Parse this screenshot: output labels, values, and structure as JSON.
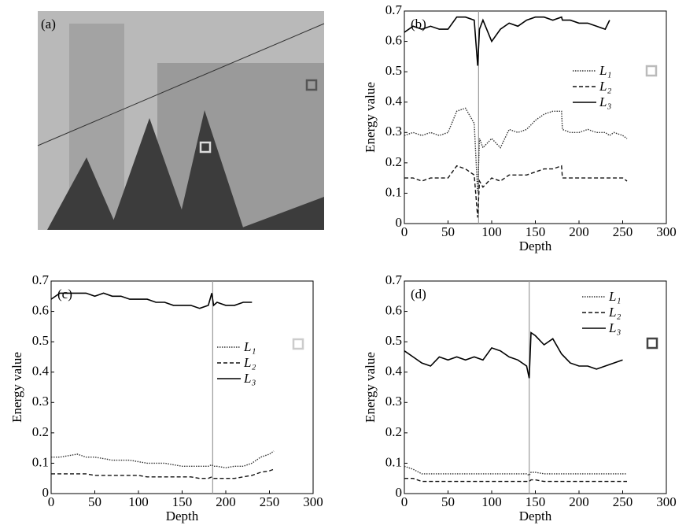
{
  "photo": {
    "label": "(a)"
  },
  "chart_data": [
    {
      "type": "line",
      "panel_label": "(b)",
      "xlabel": "Depth",
      "ylabel": "Energy value",
      "xlim": [
        0,
        300
      ],
      "ylim": [
        0,
        0.7
      ],
      "xticks": [
        0,
        50,
        100,
        150,
        200,
        250,
        300
      ],
      "yticks": [
        0,
        0.1,
        0.2,
        0.3,
        0.4,
        0.5,
        0.6,
        0.7
      ],
      "marker_x": 85,
      "x": [
        0,
        10,
        20,
        30,
        40,
        50,
        60,
        70,
        80,
        84,
        86,
        90,
        100,
        110,
        120,
        130,
        140,
        150,
        160,
        170,
        180,
        181,
        190,
        200,
        210,
        220,
        230,
        235,
        240,
        250,
        255
      ],
      "series": [
        {
          "name": "L₁",
          "style": "dotted",
          "color": "#333333",
          "values": [
            0.29,
            0.3,
            0.29,
            0.3,
            0.29,
            0.3,
            0.37,
            0.38,
            0.33,
            0.1,
            0.28,
            0.25,
            0.28,
            0.25,
            0.31,
            0.3,
            0.31,
            0.34,
            0.36,
            0.37,
            0.37,
            0.31,
            0.3,
            0.3,
            0.31,
            0.3,
            0.3,
            0.29,
            0.3,
            0.29,
            0.28
          ]
        },
        {
          "name": "L₂",
          "style": "dashed",
          "color": "#111111",
          "values": [
            0.15,
            0.15,
            0.14,
            0.15,
            0.15,
            0.15,
            0.19,
            0.18,
            0.16,
            0.02,
            0.14,
            0.12,
            0.15,
            0.14,
            0.16,
            0.16,
            0.16,
            0.17,
            0.18,
            0.18,
            0.19,
            0.15,
            0.15,
            0.15,
            0.15,
            0.15,
            0.15,
            0.15,
            0.15,
            0.15,
            0.14
          ]
        },
        {
          "name": "L₃",
          "style": "solid",
          "color": "#000000",
          "values": [
            0.63,
            0.65,
            0.64,
            0.65,
            0.64,
            0.64,
            0.68,
            0.68,
            0.67,
            0.52,
            0.64,
            0.67,
            0.6,
            0.64,
            0.66,
            0.65,
            0.67,
            0.68,
            0.68,
            0.67,
            0.68,
            0.67,
            0.67,
            0.66,
            0.66,
            0.65,
            0.64,
            0.67,
            null,
            null,
            null
          ]
        }
      ]
    },
    {
      "type": "line",
      "panel_label": "(c)",
      "xlabel": "Depth",
      "ylabel": "Energy value",
      "xlim": [
        0,
        300
      ],
      "ylim": [
        0,
        0.7
      ],
      "xticks": [
        0,
        50,
        100,
        150,
        200,
        250,
        300
      ],
      "yticks": [
        0,
        0.1,
        0.2,
        0.3,
        0.4,
        0.5,
        0.6,
        0.7
      ],
      "marker_x": 185,
      "x": [
        0,
        10,
        20,
        30,
        40,
        50,
        60,
        70,
        80,
        90,
        100,
        110,
        120,
        130,
        140,
        150,
        160,
        170,
        180,
        184,
        186,
        190,
        200,
        210,
        220,
        230,
        240,
        250,
        255
      ],
      "series": [
        {
          "name": "L₁",
          "style": "dotted",
          "color": "#333333",
          "values": [
            0.12,
            0.12,
            0.125,
            0.13,
            0.12,
            0.12,
            0.115,
            0.11,
            0.11,
            0.11,
            0.105,
            0.1,
            0.1,
            0.1,
            0.095,
            0.09,
            0.09,
            0.09,
            0.09,
            0.095,
            0.09,
            0.09,
            0.085,
            0.09,
            0.09,
            0.1,
            0.12,
            0.13,
            0.14
          ]
        },
        {
          "name": "L₂",
          "style": "dashed",
          "color": "#111111",
          "values": [
            0.065,
            0.065,
            0.065,
            0.065,
            0.065,
            0.06,
            0.06,
            0.06,
            0.06,
            0.06,
            0.06,
            0.055,
            0.055,
            0.055,
            0.055,
            0.055,
            0.055,
            0.05,
            0.05,
            0.055,
            0.05,
            0.05,
            0.05,
            0.05,
            0.055,
            0.06,
            0.07,
            0.075,
            0.08
          ]
        },
        {
          "name": "L₃",
          "style": "solid",
          "color": "#000000",
          "values": [
            0.64,
            0.66,
            0.66,
            0.66,
            0.66,
            0.65,
            0.66,
            0.65,
            0.65,
            0.64,
            0.64,
            0.64,
            0.63,
            0.63,
            0.62,
            0.62,
            0.62,
            0.61,
            0.62,
            0.66,
            0.62,
            0.63,
            0.62,
            0.62,
            0.63,
            0.63,
            null,
            null,
            null
          ]
        }
      ]
    },
    {
      "type": "line",
      "panel_label": "(d)",
      "xlabel": "Depth",
      "ylabel": "Energy value",
      "xlim": [
        0,
        300
      ],
      "ylim": [
        0,
        0.7
      ],
      "xticks": [
        0,
        50,
        100,
        150,
        200,
        250,
        300
      ],
      "yticks": [
        0,
        0.1,
        0.2,
        0.3,
        0.4,
        0.5,
        0.6,
        0.7
      ],
      "marker_x": 143,
      "x": [
        0,
        10,
        20,
        30,
        40,
        50,
        60,
        70,
        80,
        90,
        100,
        110,
        120,
        130,
        140,
        143,
        145,
        150,
        160,
        170,
        180,
        190,
        200,
        210,
        220,
        230,
        240,
        250,
        255
      ],
      "series": [
        {
          "name": "L₁",
          "style": "dotted",
          "color": "#333333",
          "values": [
            0.09,
            0.08,
            0.065,
            0.065,
            0.065,
            0.065,
            0.065,
            0.065,
            0.065,
            0.065,
            0.065,
            0.065,
            0.065,
            0.065,
            0.065,
            0.06,
            0.07,
            0.07,
            0.065,
            0.065,
            0.065,
            0.065,
            0.065,
            0.065,
            0.065,
            0.065,
            0.065,
            0.065,
            0.065
          ]
        },
        {
          "name": "L₂",
          "style": "dashed",
          "color": "#111111",
          "values": [
            0.05,
            0.05,
            0.04,
            0.04,
            0.04,
            0.04,
            0.04,
            0.04,
            0.04,
            0.04,
            0.04,
            0.04,
            0.04,
            0.04,
            0.04,
            0.04,
            0.045,
            0.045,
            0.04,
            0.04,
            0.04,
            0.04,
            0.04,
            0.04,
            0.04,
            0.04,
            0.04,
            0.04,
            0.04
          ]
        },
        {
          "name": "L₃",
          "style": "solid",
          "color": "#000000",
          "values": [
            0.47,
            0.45,
            0.43,
            0.42,
            0.45,
            0.44,
            0.45,
            0.44,
            0.45,
            0.44,
            0.48,
            0.47,
            0.45,
            0.44,
            0.42,
            0.38,
            0.53,
            0.52,
            0.49,
            0.51,
            0.46,
            0.43,
            0.42,
            0.42,
            0.41,
            0.42,
            0.43,
            0.44,
            null
          ]
        }
      ]
    }
  ]
}
